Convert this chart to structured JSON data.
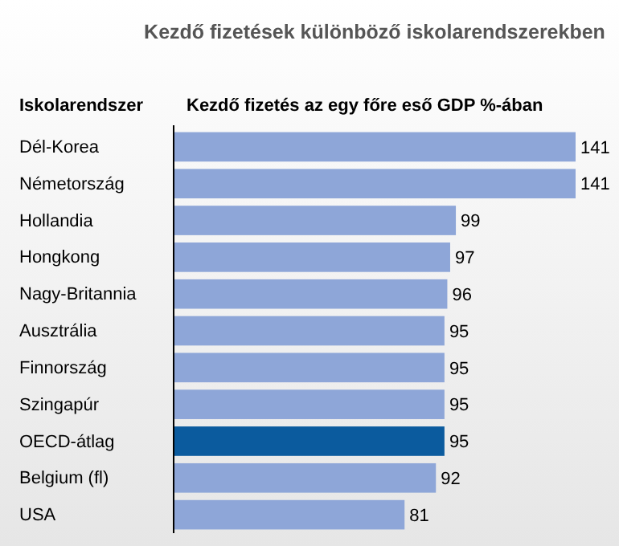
{
  "chart_data": {
    "type": "bar",
    "orientation": "horizontal",
    "title": "Kezdő fizetések különböző iskolarendszerekben",
    "ylabel": "Iskolarendszer",
    "xlabel": "Kezdő fizetés az egy főre eső GDP %-ában",
    "categories": [
      "Dél-Korea",
      "Németország",
      "Hollandia",
      "Hongkong",
      "Nagy-Britannia",
      "Ausztrália",
      "Finnország",
      "Szingapúr",
      "OECD-átlag",
      "Belgium (fl)",
      "USA"
    ],
    "values": [
      141,
      141,
      99,
      97,
      96,
      95,
      95,
      95,
      95,
      92,
      81
    ],
    "colors": [
      "#8ea6d8",
      "#8ea6d8",
      "#8ea6d8",
      "#8ea6d8",
      "#8ea6d8",
      "#8ea6d8",
      "#8ea6d8",
      "#8ea6d8",
      "#0b5b9e",
      "#8ea6d8",
      "#8ea6d8"
    ],
    "data_labels": true
  }
}
